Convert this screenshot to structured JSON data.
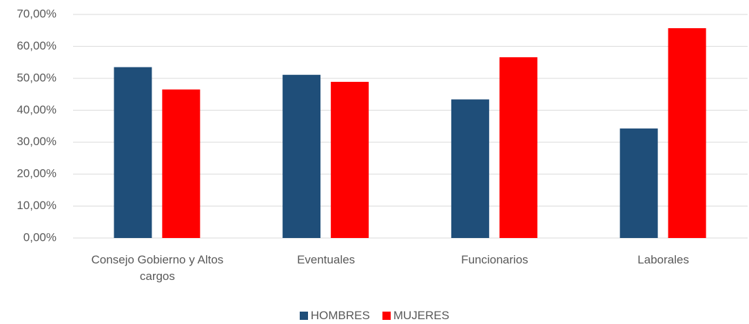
{
  "chart_data": {
    "type": "bar",
    "categories": [
      "Consejo Gobierno y Altos cargos",
      "Eventuales",
      "Funcionarios",
      "Laborales"
    ],
    "series": [
      {
        "name": "HOMBRES",
        "color": "#1f4e79",
        "values": [
          53.5,
          51.1,
          43.4,
          34.3
        ]
      },
      {
        "name": "MUJERES",
        "color": "#ff0000",
        "values": [
          46.5,
          48.9,
          56.6,
          65.7
        ]
      }
    ],
    "ylim": [
      0,
      70
    ],
    "yticks": [
      {
        "value": 0,
        "label": "0,00%"
      },
      {
        "value": 10,
        "label": "10,00%"
      },
      {
        "value": 20,
        "label": "20,00%"
      },
      {
        "value": 30,
        "label": "30,00%"
      },
      {
        "value": 40,
        "label": "40,00%"
      },
      {
        "value": 50,
        "label": "50,00%"
      },
      {
        "value": 60,
        "label": "60,00%"
      },
      {
        "value": 70,
        "label": "70,00%"
      }
    ],
    "grid": true,
    "legend": "bottom"
  }
}
